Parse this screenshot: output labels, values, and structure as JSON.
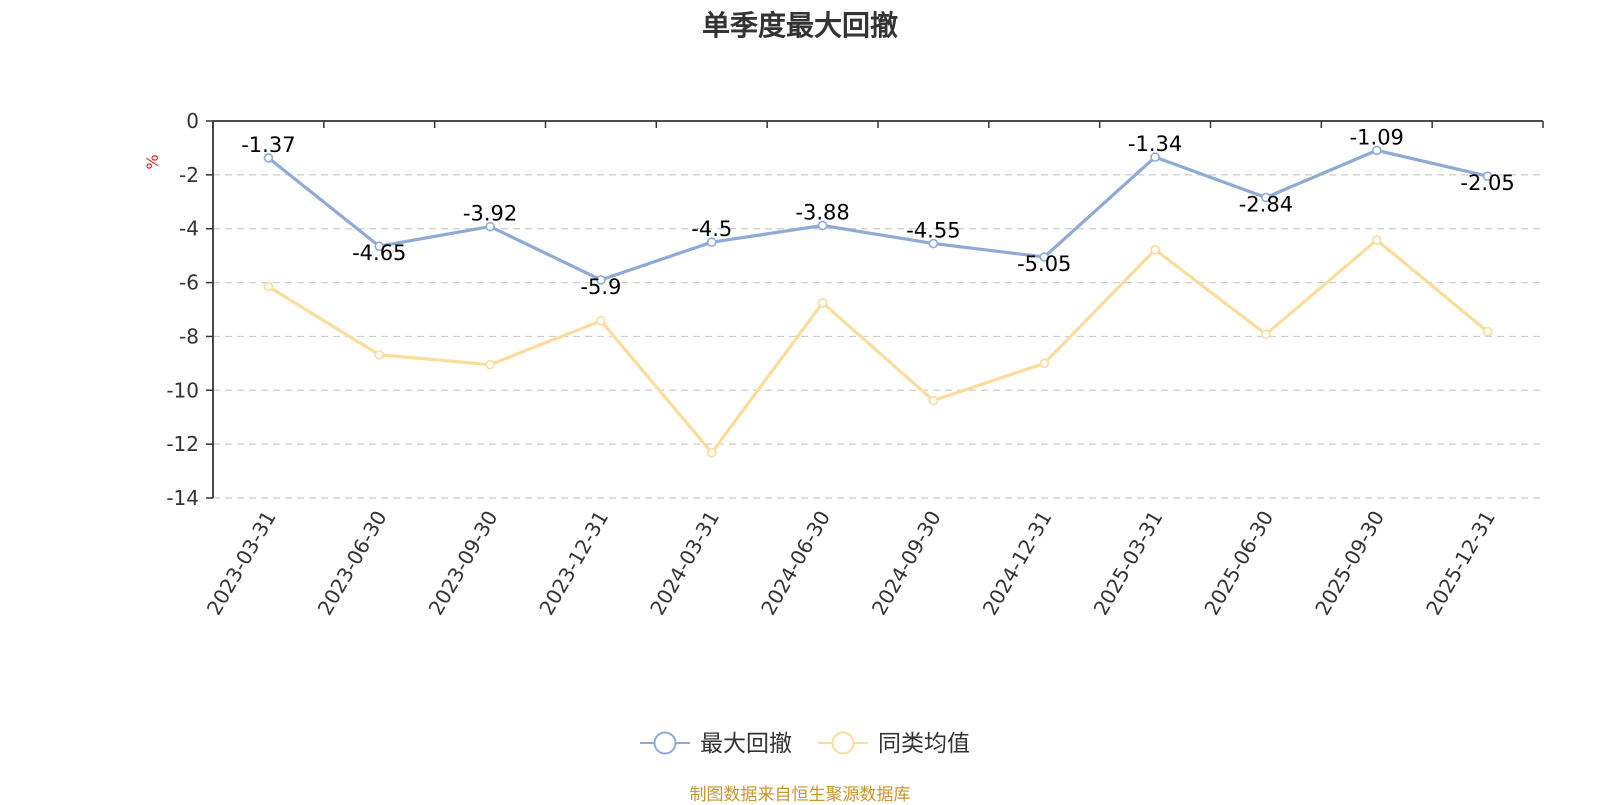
{
  "chart_data": {
    "type": "line",
    "title": "单季度最大回撤",
    "ylabel": "%",
    "categories": [
      "2023-03-31",
      "2023-06-30",
      "2023-09-30",
      "2023-12-31",
      "2024-03-31",
      "2024-06-30",
      "2024-09-30",
      "2024-12-31",
      "2025-03-31",
      "2025-06-30",
      "2025-09-30",
      "2025-12-31"
    ],
    "ylim": [
      -14,
      0
    ],
    "yticks": [
      0,
      -2,
      -4,
      -6,
      -8,
      -10,
      -12,
      -14
    ],
    "grid": true,
    "legend_position": "bottom",
    "series": [
      {
        "name": "最大回撤",
        "color": "#8eaad6",
        "show_labels": true,
        "values": [
          -1.37,
          -4.65,
          -3.92,
          -5.9,
          -4.5,
          -3.88,
          -4.55,
          -5.05,
          -1.34,
          -2.84,
          -1.09,
          -2.05
        ]
      },
      {
        "name": "同类均值",
        "color": "#fddb9b",
        "show_labels": false,
        "values": [
          -6.15,
          -8.68,
          -9.05,
          -7.42,
          -12.32,
          -6.75,
          -10.38,
          -9.0,
          -4.78,
          -7.92,
          -4.42,
          -7.82
        ]
      }
    ]
  },
  "footer": {
    "source": "制图数据来自恒生聚源数据库"
  },
  "colors": {
    "unit": "#e02020",
    "axis": "#333333",
    "grid": "#cccccc",
    "source": "#c8962d"
  }
}
